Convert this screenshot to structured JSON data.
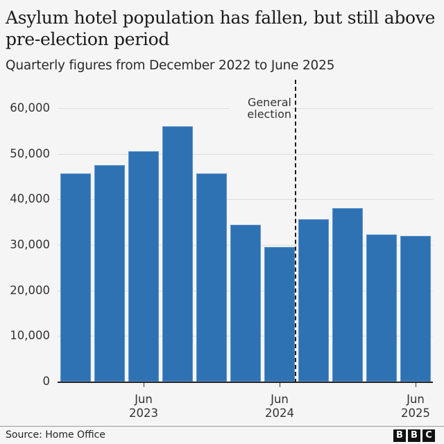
{
  "header": {
    "title": "Asylum hotel population has fallen, but still above pre-election period",
    "subtitle": "Quarterly figures from December 2022 to June 2025"
  },
  "annotation": {
    "label_line1": "General",
    "label_line2": "election",
    "position_between": [
      "Jun 2024",
      "Sep 2024"
    ]
  },
  "y_axis": {
    "ticks": [
      "0",
      "10,000",
      "20,000",
      "30,000",
      "40,000",
      "50,000",
      "60,000"
    ]
  },
  "x_axis": {
    "ticks": [
      {
        "line1": "Jun",
        "line2": "2023"
      },
      {
        "line1": "Jun",
        "line2": "2024"
      },
      {
        "line1": "Jun",
        "line2": "2025"
      }
    ]
  },
  "footer": {
    "source": "Source: Home Office",
    "logo": [
      "B",
      "B",
      "C"
    ]
  },
  "colors": {
    "bar": "#2f72b3",
    "background": "#f5f5f5",
    "gridline": "#dcdcdc"
  },
  "chart_data": {
    "type": "bar",
    "title": "Asylum hotel population has fallen, but still above pre-election period",
    "subtitle": "Quarterly figures from December 2022 to June 2025",
    "categories": [
      "Dec 2022",
      "Mar 2023",
      "Jun 2023",
      "Sep 2023",
      "Dec 2023",
      "Mar 2024",
      "Jun 2024",
      "Sep 2024",
      "Dec 2024",
      "Mar 2025",
      "Jun 2025"
    ],
    "values": [
      45700,
      47500,
      50500,
      56000,
      45700,
      34400,
      29500,
      35600,
      38000,
      32300,
      32000
    ],
    "xlabel": "",
    "ylabel": "",
    "ylim": [
      0,
      60000
    ],
    "yticks": [
      0,
      10000,
      20000,
      30000,
      40000,
      50000,
      60000
    ],
    "xtick_labels": [
      "Jun 2023",
      "Jun 2024",
      "Jun 2025"
    ],
    "grid": true,
    "legend": null,
    "annotations": [
      {
        "type": "vertical-dashed-line",
        "text": "General election",
        "between": [
          "Jun 2024",
          "Sep 2024"
        ]
      }
    ],
    "source": "Source: Home Office"
  }
}
